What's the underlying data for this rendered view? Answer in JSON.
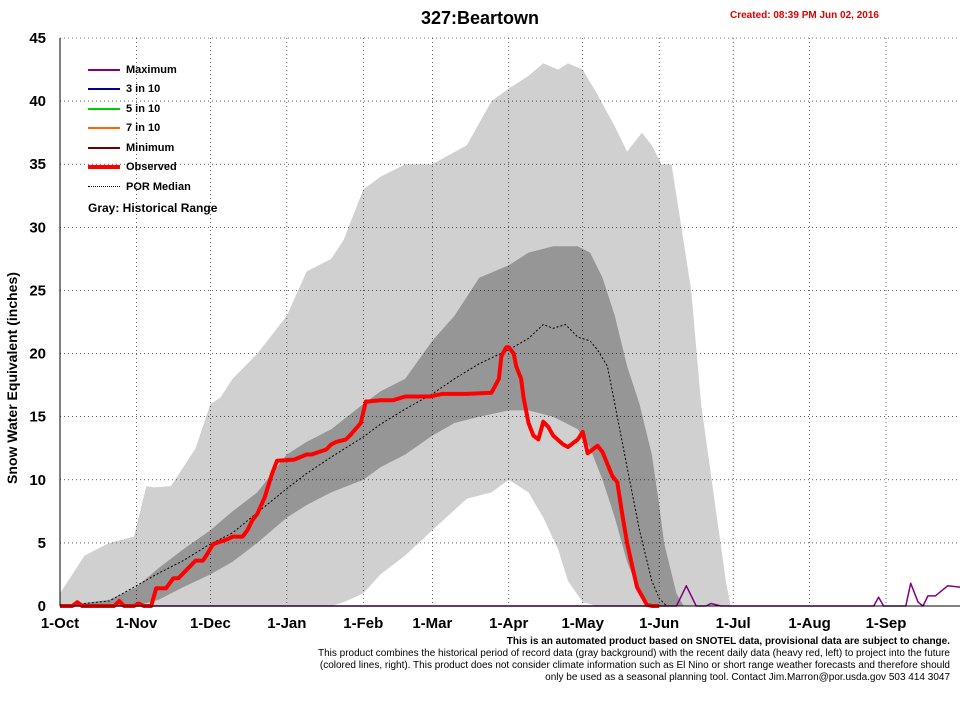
{
  "title": "327:Beartown",
  "created": "Created: 08:39 PM Jun 02, 2016",
  "ylabel": "Snow Water Equivalent (inches)",
  "legend": {
    "items": [
      {
        "label": "Maximum",
        "color": "#800080",
        "style": "solid"
      },
      {
        "label": "3 in 10",
        "color": "#00008b",
        "style": "solid"
      },
      {
        "label": "5 in 10",
        "color": "#00cc00",
        "style": "solid"
      },
      {
        "label": "7 in 10",
        "color": "#ff6600",
        "style": "solid"
      },
      {
        "label": "Minimum",
        "color": "#660000",
        "style": "solid"
      },
      {
        "label": "Observed",
        "color": "#ff0000",
        "style": "heavy"
      },
      {
        "label": "POR Median",
        "color": "#000000",
        "style": "dotted"
      }
    ],
    "note": "Gray: Historical Range"
  },
  "footer": {
    "lead": "This is an automated product based on SNOTEL data, provisional data are subject to change.",
    "body": "This product combines the historical period of record data (gray background) with the recent daily data (heavy red, left) to project into the future (colored lines, right). This product does not consider climate information such as El Nino or short range weather forecasts and therefore should only be used as a seasonal planning tool. Contact Jim.Marron@por.usda.gov 503 414 3047"
  },
  "chart_data": {
    "type": "area",
    "ylim": [
      0,
      45
    ],
    "yticks": [
      0,
      5,
      10,
      15,
      20,
      25,
      30,
      35,
      40,
      45
    ],
    "xlim_days": [
      0,
      365
    ],
    "xticks": [
      {
        "label": "1-Oct",
        "day": 0
      },
      {
        "label": "1-Nov",
        "day": 31
      },
      {
        "label": "1-Dec",
        "day": 61
      },
      {
        "label": "1-Jan",
        "day": 92
      },
      {
        "label": "1-Feb",
        "day": 123
      },
      {
        "label": "1-Mar",
        "day": 151
      },
      {
        "label": "1-Apr",
        "day": 182
      },
      {
        "label": "1-May",
        "day": 212
      },
      {
        "label": "1-Jun",
        "day": 243
      },
      {
        "label": "1-Jul",
        "day": 273
      },
      {
        "label": "1-Aug",
        "day": 304
      },
      {
        "label": "1-Sep",
        "day": 335
      }
    ],
    "grid": true,
    "legend_position": "top-left",
    "series": [
      {
        "name": "Maximum",
        "color": "#800080",
        "x": [
          0,
          250,
          252,
          254,
          258,
          262,
          264,
          268,
          330,
          332,
          334,
          336,
          343,
          345,
          348,
          350,
          352,
          355,
          360,
          365
        ],
        "y": [
          0,
          0,
          0.8,
          1.6,
          0,
          0,
          0.2,
          0,
          0,
          0.7,
          0,
          0,
          0,
          1.8,
          0.3,
          0,
          0.8,
          0.8,
          1.6,
          1.5
        ]
      },
      {
        "name": "Observed",
        "color": "#ff0000",
        "x": [
          0,
          5,
          7,
          9,
          20,
          22,
          24,
          26,
          30,
          32,
          34,
          37,
          39,
          43,
          46,
          48,
          55,
          58,
          60,
          62,
          68,
          70,
          72,
          74,
          76,
          78,
          80,
          83,
          86,
          88,
          95,
          100,
          102,
          108,
          110,
          112,
          116,
          118,
          122,
          124,
          125,
          130,
          135,
          140,
          150,
          155,
          165,
          175,
          178,
          179,
          181,
          182,
          184,
          185,
          187,
          188,
          190,
          192,
          194,
          196,
          198,
          200,
          204,
          206,
          210,
          212,
          214,
          216,
          218,
          220,
          224,
          226,
          228,
          230,
          232,
          234,
          236,
          238,
          240,
          241,
          243
        ],
        "y": [
          0,
          0,
          0.3,
          0,
          0,
          0,
          0.4,
          0,
          0,
          0.2,
          0,
          0,
          1.4,
          1.4,
          2.2,
          2.2,
          3.6,
          3.6,
          4.2,
          4.9,
          5.3,
          5.5,
          5.5,
          5.5,
          6.0,
          6.8,
          7.3,
          8.6,
          10.5,
          11.5,
          11.6,
          12.0,
          12.0,
          12.4,
          12.8,
          13.0,
          13.2,
          13.6,
          14.5,
          16.2,
          16.2,
          16.3,
          16.3,
          16.6,
          16.6,
          16.8,
          16.8,
          16.9,
          18.0,
          19.8,
          20.5,
          20.5,
          20.0,
          19.0,
          18.0,
          16.5,
          14.5,
          13.5,
          13.2,
          14.6,
          14.2,
          13.5,
          12.8,
          12.6,
          13.2,
          13.8,
          12.1,
          12.4,
          12.7,
          12.2,
          10.3,
          9.8,
          7.3,
          5.0,
          3.2,
          1.5,
          0.8,
          0.1,
          0,
          0,
          0
        ]
      },
      {
        "name": "POR Median",
        "color": "#000000",
        "x": [
          0,
          20,
          30,
          40,
          50,
          60,
          70,
          80,
          92,
          100,
          110,
          123,
          130,
          140,
          151,
          160,
          170,
          182,
          190,
          196,
          200,
          205,
          210,
          215,
          218,
          222,
          225,
          230,
          235,
          240,
          243,
          246
        ],
        "y": [
          0,
          0.4,
          1.5,
          2.6,
          3.6,
          4.8,
          5.8,
          7.4,
          9.3,
          10.5,
          11.8,
          13.4,
          14.4,
          15.6,
          16.8,
          18.0,
          19.2,
          20.3,
          21.2,
          22.3,
          22.0,
          22.3,
          21.3,
          21.0,
          20.3,
          19.0,
          16.0,
          11.0,
          6.0,
          2.0,
          0.6,
          0
        ]
      }
    ],
    "bands": [
      {
        "label": "historical range (max-min)",
        "color": "#d0d0d0",
        "x": [
          0,
          10,
          20,
          30,
          35,
          38,
          45,
          55,
          61,
          65,
          70,
          80,
          92,
          100,
          110,
          115,
          123,
          130,
          140,
          151,
          165,
          175,
          182,
          190,
          196,
          202,
          206,
          212,
          218,
          225,
          230,
          236,
          240,
          244,
          248,
          252,
          256,
          260,
          265,
          270,
          272
        ],
        "upper": [
          1.0,
          4.0,
          5.0,
          5.5,
          9.5,
          9.4,
          9.5,
          12.5,
          16.0,
          16.5,
          18.0,
          20.0,
          23.0,
          26.5,
          27.5,
          29.0,
          33.0,
          34.0,
          35.0,
          35.0,
          36.5,
          40.0,
          41.0,
          42.0,
          43.0,
          42.5,
          43.0,
          42.5,
          40.5,
          38.0,
          36.0,
          37.5,
          36.5,
          35.0,
          35.0,
          30.0,
          25.0,
          16.0,
          9.0,
          2.0,
          0
        ],
        "lower": [
          0,
          0,
          0,
          0,
          0,
          0,
          0,
          0,
          0,
          0,
          0,
          0,
          0,
          0,
          0,
          0.3,
          1.0,
          2.5,
          4.0,
          6.0,
          8.5,
          9.0,
          10.0,
          9.0,
          7.0,
          4.5,
          2.0,
          0.3,
          0,
          0,
          0,
          0,
          0,
          0,
          0,
          0,
          0,
          0,
          0,
          0,
          0
        ]
      },
      {
        "label": "inner historical range",
        "color": "#969696",
        "x": [
          0,
          20,
          31,
          40,
          50,
          61,
          70,
          80,
          92,
          100,
          110,
          123,
          130,
          140,
          151,
          160,
          170,
          182,
          190,
          200,
          210,
          215,
          220,
          225,
          230,
          235,
          240,
          243,
          245,
          250,
          253
        ],
        "upper": [
          0,
          0.5,
          1.5,
          3.0,
          4.5,
          6.0,
          7.5,
          9.0,
          12.0,
          13.0,
          14.0,
          16.0,
          17.0,
          18.0,
          21.0,
          23.0,
          26.0,
          27.0,
          28.0,
          28.5,
          28.5,
          28.0,
          26.0,
          23.0,
          19.0,
          16.0,
          12.0,
          8.0,
          5.0,
          1.0,
          0
        ],
        "lower": [
          0,
          0,
          0,
          0.5,
          1.5,
          2.5,
          3.5,
          5.0,
          7.0,
          8.0,
          9.0,
          10.0,
          11.0,
          12.0,
          13.5,
          14.5,
          15.0,
          15.5,
          15.5,
          15.0,
          14.0,
          12.5,
          10.0,
          7.0,
          3.5,
          1.0,
          0,
          0,
          0,
          0,
          0
        ]
      }
    ]
  }
}
